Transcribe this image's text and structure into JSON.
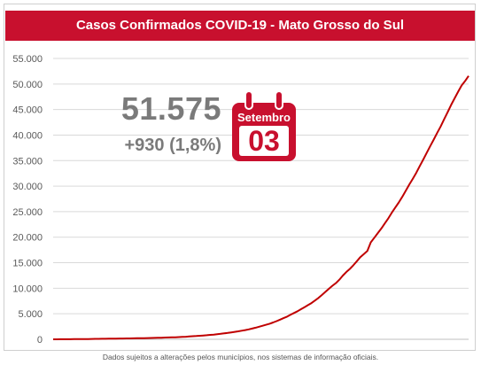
{
  "header": {
    "title": "Casos Confirmados COVID-19 - Mato Grosso do Sul"
  },
  "summary": {
    "total": "51.575",
    "daily_increase": "+930 (1,8%)"
  },
  "calendar": {
    "month": "Setembro",
    "day": "03"
  },
  "footnote": "Dados sujeitos a alterações pelos municípios, nos sistemas de informação oficiais.",
  "colors": {
    "accent": "#c8102e",
    "line": "#c00000",
    "grid": "#d9d9d9",
    "text_gray": "#7a7a7a"
  },
  "icons": {
    "calendar": "calendar-icon"
  },
  "chart_data": {
    "type": "line",
    "title": "Casos Confirmados COVID-19 - Mato Grosso do Sul",
    "xlabel": "",
    "ylabel": "",
    "ylim": [
      0,
      55000
    ],
    "yticks": [
      0,
      5000,
      10000,
      15000,
      20000,
      25000,
      30000,
      35000,
      40000,
      45000,
      50000,
      55000
    ],
    "ytick_labels": [
      "0",
      "5.000",
      "10.000",
      "15.000",
      "20.000",
      "25.000",
      "30.000",
      "35.000",
      "40.000",
      "45.000",
      "50.000",
      "55.000"
    ],
    "grid": true,
    "series": [
      {
        "values": [
          0,
          5,
          10,
          15,
          20,
          25,
          30,
          35,
          40,
          50,
          60,
          70,
          80,
          90,
          100,
          110,
          120,
          130,
          140,
          150,
          160,
          170,
          180,
          190,
          200,
          210,
          220,
          240,
          260,
          280,
          300,
          320,
          340,
          360,
          380,
          400,
          430,
          460,
          500,
          550,
          600,
          650,
          700,
          750,
          800,
          860,
          920,
          1000,
          1080,
          1170,
          1250,
          1350,
          1450,
          1560,
          1680,
          1800,
          1950,
          2100,
          2280,
          2460,
          2650,
          2850,
          3050,
          3300,
          3550,
          3850,
          4150,
          4450,
          4800,
          5150,
          5500,
          5900,
          6300,
          6700,
          7100,
          7600,
          8100,
          8700,
          9300,
          9900,
          10500,
          11000,
          11700,
          12500,
          13200,
          13800,
          14500,
          15300,
          16100,
          16700,
          17300,
          19000,
          19900,
          20800,
          21700,
          22700,
          23700,
          24800,
          25800,
          26800,
          27900,
          29100,
          30300,
          31400,
          32600,
          33900,
          35200,
          36500,
          37800,
          39100,
          40400,
          41700,
          43100,
          44500,
          45900,
          47200,
          48500,
          49700,
          50600,
          51575
        ]
      }
    ]
  }
}
